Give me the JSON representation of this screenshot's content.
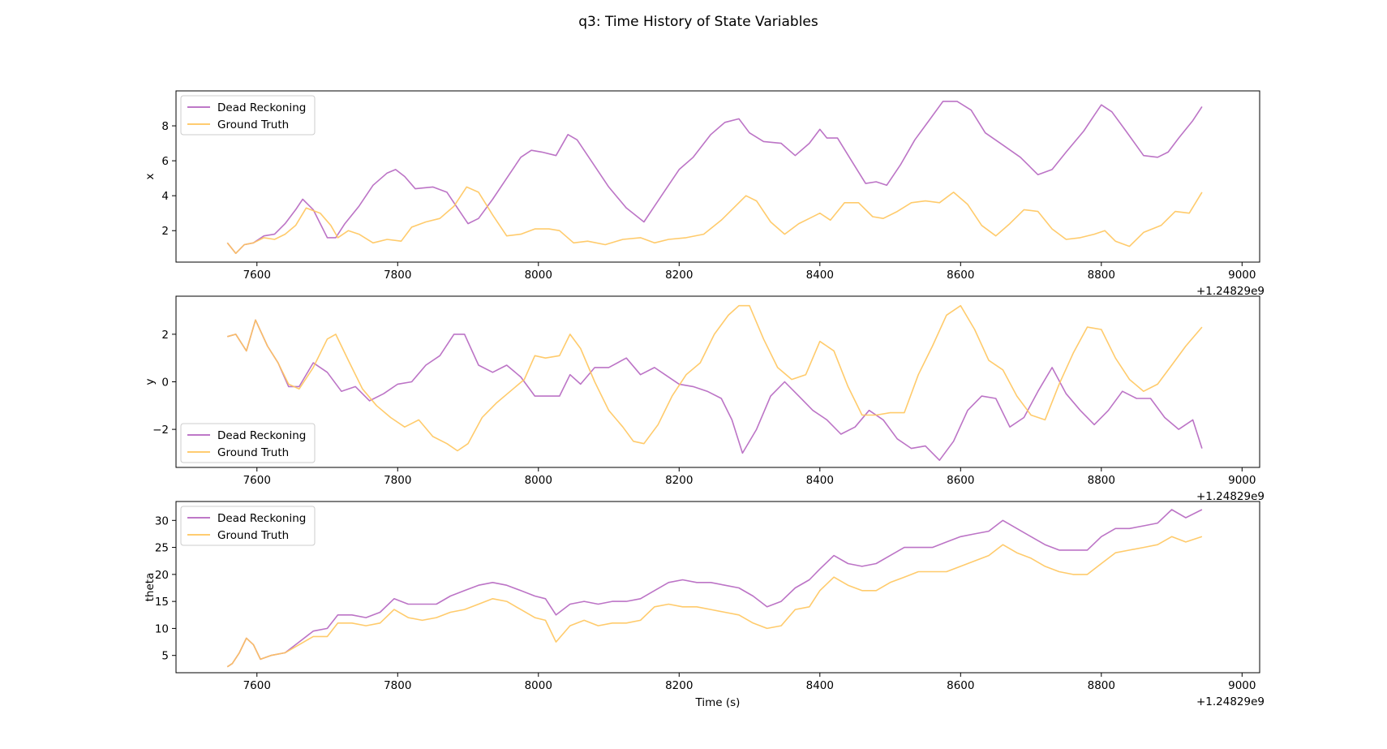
{
  "figure": {
    "title": "q3: Time History of State Variables",
    "xlabel": "Time (s)",
    "x_offset_label": "+1.24829e9"
  },
  "colors": {
    "Dead Reckoning": "#b565c0",
    "Ground Truth": "#ffc55c"
  },
  "chart_data": [
    {
      "type": "line",
      "title": "",
      "xlabel": "",
      "ylabel": "x",
      "x_offset": "+1.24829e9",
      "xlim": [
        7485,
        9025
      ],
      "ylim": [
        0.2,
        10.0
      ],
      "xticks": [
        7600,
        7800,
        8000,
        8200,
        8400,
        8600,
        8800,
        9000
      ],
      "yticks": [
        2,
        4,
        6,
        8
      ],
      "legend": "upper-left",
      "series": [
        {
          "name": "Dead Reckoning",
          "x": [
            7558,
            7570,
            7582,
            7595,
            7610,
            7625,
            7640,
            7655,
            7665,
            7680,
            7700,
            7712,
            7725,
            7745,
            7765,
            7785,
            7797,
            7810,
            7825,
            7850,
            7870,
            7885,
            7900,
            7915,
            7935,
            7955,
            7975,
            7990,
            8005,
            8025,
            8042,
            8055,
            8075,
            8100,
            8125,
            8150,
            8165,
            8180,
            8200,
            8220,
            8245,
            8265,
            8285,
            8300,
            8320,
            8345,
            8365,
            8385,
            8400,
            8410,
            8425,
            8445,
            8465,
            8480,
            8495,
            8515,
            8535,
            8555,
            8575,
            8595,
            8615,
            8635,
            8660,
            8685,
            8710,
            8730,
            8750,
            8775,
            8790,
            8800,
            8815,
            8835,
            8860,
            8880,
            8895,
            8910,
            8930,
            8943
          ],
          "y": [
            1.3,
            0.7,
            1.2,
            1.3,
            1.7,
            1.8,
            2.4,
            3.2,
            3.8,
            3.2,
            1.6,
            1.6,
            2.4,
            3.4,
            4.6,
            5.3,
            5.5,
            5.1,
            4.4,
            4.5,
            4.2,
            3.3,
            2.4,
            2.7,
            3.8,
            5.0,
            6.2,
            6.6,
            6.5,
            6.3,
            7.5,
            7.2,
            6.0,
            4.5,
            3.3,
            2.5,
            3.4,
            4.3,
            5.5,
            6.2,
            7.5,
            8.2,
            8.4,
            7.6,
            7.1,
            7.0,
            6.3,
            7.0,
            7.8,
            7.3,
            7.3,
            6.0,
            4.7,
            4.8,
            4.6,
            5.8,
            7.2,
            8.3,
            9.4,
            9.4,
            8.9,
            7.6,
            6.9,
            6.2,
            5.2,
            5.5,
            6.5,
            7.7,
            8.6,
            9.2,
            8.8,
            7.7,
            6.3,
            6.2,
            6.5,
            7.3,
            8.3,
            9.1
          ]
        },
        {
          "name": "Ground Truth",
          "x": [
            7558,
            7570,
            7582,
            7595,
            7610,
            7625,
            7640,
            7655,
            7670,
            7690,
            7705,
            7715,
            7730,
            7745,
            7765,
            7785,
            7805,
            7820,
            7840,
            7860,
            7880,
            7898,
            7915,
            7935,
            7955,
            7975,
            7995,
            8015,
            8030,
            8050,
            8070,
            8095,
            8120,
            8145,
            8165,
            8185,
            8210,
            8235,
            8260,
            8280,
            8295,
            8310,
            8330,
            8350,
            8370,
            8385,
            8400,
            8415,
            8435,
            8455,
            8475,
            8490,
            8510,
            8530,
            8550,
            8570,
            8590,
            8610,
            8630,
            8650,
            8670,
            8690,
            8710,
            8730,
            8750,
            8770,
            8790,
            8805,
            8820,
            8840,
            8860,
            8885,
            8905,
            8925,
            8943
          ],
          "y": [
            1.3,
            0.7,
            1.2,
            1.3,
            1.6,
            1.5,
            1.8,
            2.3,
            3.3,
            3.0,
            2.3,
            1.6,
            2.0,
            1.8,
            1.3,
            1.5,
            1.4,
            2.2,
            2.5,
            2.7,
            3.4,
            4.5,
            4.2,
            2.9,
            1.7,
            1.8,
            2.1,
            2.1,
            2.0,
            1.3,
            1.4,
            1.2,
            1.5,
            1.6,
            1.3,
            1.5,
            1.6,
            1.8,
            2.6,
            3.4,
            4.0,
            3.7,
            2.5,
            1.8,
            2.4,
            2.7,
            3.0,
            2.6,
            3.6,
            3.6,
            2.8,
            2.7,
            3.1,
            3.6,
            3.7,
            3.6,
            4.2,
            3.5,
            2.3,
            1.7,
            2.4,
            3.2,
            3.1,
            2.1,
            1.5,
            1.6,
            1.8,
            2.0,
            1.4,
            1.1,
            1.9,
            2.3,
            3.1,
            3.0,
            4.2
          ]
        }
      ]
    },
    {
      "type": "line",
      "title": "",
      "xlabel": "",
      "ylabel": "y",
      "x_offset": "+1.24829e9",
      "xlim": [
        7485,
        9025
      ],
      "ylim": [
        -3.6,
        3.6
      ],
      "xticks": [
        7600,
        7800,
        8000,
        8200,
        8400,
        8600,
        8800,
        9000
      ],
      "yticks": [
        -2,
        0,
        2
      ],
      "legend": "lower-left",
      "series": [
        {
          "name": "Dead Reckoning",
          "x": [
            7558,
            7570,
            7585,
            7598,
            7615,
            7630,
            7645,
            7660,
            7680,
            7700,
            7720,
            7740,
            7760,
            7780,
            7800,
            7820,
            7840,
            7860,
            7880,
            7895,
            7915,
            7935,
            7955,
            7975,
            7995,
            8015,
            8030,
            8045,
            8060,
            8080,
            8100,
            8125,
            8145,
            8165,
            8180,
            8200,
            8220,
            8240,
            8260,
            8275,
            8290,
            8310,
            8330,
            8350,
            8370,
            8390,
            8410,
            8430,
            8450,
            8470,
            8490,
            8510,
            8530,
            8550,
            8570,
            8590,
            8610,
            8630,
            8650,
            8670,
            8690,
            8710,
            8730,
            8750,
            8770,
            8790,
            8810,
            8830,
            8850,
            8870,
            8890,
            8910,
            8930,
            8943
          ],
          "y": [
            1.9,
            2.0,
            1.3,
            2.6,
            1.5,
            0.8,
            -0.2,
            -0.2,
            0.8,
            0.4,
            -0.4,
            -0.2,
            -0.8,
            -0.5,
            -0.1,
            0.0,
            0.7,
            1.1,
            2.0,
            2.0,
            0.7,
            0.4,
            0.7,
            0.2,
            -0.6,
            -0.6,
            -0.6,
            0.3,
            -0.1,
            0.6,
            0.6,
            1.0,
            0.3,
            0.6,
            0.3,
            -0.1,
            -0.2,
            -0.4,
            -0.7,
            -1.6,
            -3.0,
            -2.0,
            -0.6,
            0.0,
            -0.6,
            -1.2,
            -1.6,
            -2.2,
            -1.9,
            -1.2,
            -1.6,
            -2.4,
            -2.8,
            -2.7,
            -3.3,
            -2.5,
            -1.2,
            -0.6,
            -0.7,
            -1.9,
            -1.5,
            -0.4,
            0.6,
            -0.5,
            -1.2,
            -1.8,
            -1.2,
            -0.4,
            -0.7,
            -0.7,
            -1.5,
            -2.0,
            -1.6,
            -2.8
          ]
        },
        {
          "name": "Ground Truth",
          "x": [
            7558,
            7570,
            7585,
            7598,
            7615,
            7630,
            7645,
            7660,
            7680,
            7700,
            7712,
            7730,
            7750,
            7770,
            7790,
            7810,
            7830,
            7850,
            7870,
            7885,
            7900,
            7920,
            7940,
            7960,
            7980,
            7995,
            8010,
            8030,
            8045,
            8060,
            8080,
            8100,
            8120,
            8135,
            8150,
            8170,
            8190,
            8210,
            8230,
            8250,
            8270,
            8285,
            8300,
            8320,
            8340,
            8360,
            8380,
            8400,
            8420,
            8440,
            8460,
            8480,
            8500,
            8520,
            8540,
            8560,
            8580,
            8600,
            8620,
            8640,
            8660,
            8680,
            8700,
            8720,
            8740,
            8760,
            8780,
            8800,
            8820,
            8840,
            8860,
            8880,
            8900,
            8920,
            8943
          ],
          "y": [
            1.9,
            2.0,
            1.3,
            2.6,
            1.5,
            0.8,
            -0.1,
            -0.3,
            0.6,
            1.8,
            2.0,
            0.9,
            -0.3,
            -1.0,
            -1.5,
            -1.9,
            -1.6,
            -2.3,
            -2.6,
            -2.9,
            -2.6,
            -1.5,
            -0.9,
            -0.4,
            0.1,
            1.1,
            1.0,
            1.1,
            2.0,
            1.4,
            0.0,
            -1.2,
            -1.9,
            -2.5,
            -2.6,
            -1.8,
            -0.6,
            0.3,
            0.8,
            2.0,
            2.8,
            3.2,
            3.2,
            1.8,
            0.6,
            0.1,
            0.3,
            1.7,
            1.3,
            -0.2,
            -1.4,
            -1.4,
            -1.3,
            -1.3,
            0.3,
            1.5,
            2.8,
            3.2,
            2.2,
            0.9,
            0.5,
            -0.6,
            -1.4,
            -1.6,
            -0.1,
            1.2,
            2.3,
            2.2,
            1.0,
            0.1,
            -0.4,
            -0.1,
            0.7,
            1.5,
            2.3
          ]
        }
      ]
    },
    {
      "type": "line",
      "title": "",
      "xlabel": "Time (s)",
      "ylabel": "theta",
      "x_offset": "+1.24829e9",
      "xlim": [
        7485,
        9025
      ],
      "ylim": [
        1.8,
        33.5
      ],
      "xticks": [
        7600,
        7800,
        8000,
        8200,
        8400,
        8600,
        8800,
        9000
      ],
      "yticks": [
        5,
        10,
        15,
        20,
        25,
        30
      ],
      "legend": "upper-left",
      "series": [
        {
          "name": "Dead Reckoning",
          "x": [
            7558,
            7565,
            7575,
            7585,
            7595,
            7605,
            7620,
            7640,
            7660,
            7680,
            7700,
            7715,
            7735,
            7755,
            7775,
            7795,
            7815,
            7835,
            7855,
            7875,
            7895,
            7915,
            7935,
            7955,
            7975,
            7995,
            8010,
            8025,
            8045,
            8065,
            8085,
            8105,
            8125,
            8145,
            8165,
            8185,
            8205,
            8225,
            8245,
            8265,
            8285,
            8305,
            8325,
            8345,
            8365,
            8385,
            8400,
            8420,
            8440,
            8460,
            8480,
            8500,
            8520,
            8540,
            8560,
            8580,
            8600,
            8620,
            8640,
            8660,
            8680,
            8700,
            8720,
            8740,
            8760,
            8780,
            8800,
            8820,
            8840,
            8860,
            8880,
            8900,
            8920,
            8943
          ],
          "y": [
            2.9,
            3.5,
            5.5,
            8.2,
            7.0,
            4.3,
            5.0,
            5.5,
            7.5,
            9.5,
            10.0,
            12.5,
            12.5,
            12.0,
            13.0,
            15.5,
            14.5,
            14.5,
            14.5,
            16.0,
            17.0,
            18.0,
            18.5,
            18.0,
            17.0,
            16.0,
            15.5,
            12.5,
            14.5,
            15.0,
            14.5,
            15.0,
            15.0,
            15.5,
            17.0,
            18.5,
            19.0,
            18.5,
            18.5,
            18.0,
            17.5,
            16.0,
            14.0,
            15.0,
            17.5,
            19.0,
            21.0,
            23.5,
            22.0,
            21.5,
            22.0,
            23.5,
            25.0,
            25.0,
            25.0,
            26.0,
            27.0,
            27.5,
            28.0,
            30.0,
            28.5,
            27.0,
            25.5,
            24.5,
            24.5,
            24.5,
            27.0,
            28.5,
            28.5,
            29.0,
            29.5,
            32.0,
            30.5,
            32.0
          ]
        },
        {
          "name": "Ground Truth",
          "x": [
            7558,
            7565,
            7575,
            7585,
            7595,
            7605,
            7620,
            7640,
            7660,
            7680,
            7700,
            7715,
            7735,
            7755,
            7775,
            7795,
            7815,
            7835,
            7855,
            7875,
            7895,
            7915,
            7935,
            7955,
            7975,
            7995,
            8010,
            8025,
            8045,
            8065,
            8085,
            8105,
            8125,
            8145,
            8165,
            8185,
            8205,
            8225,
            8245,
            8265,
            8285,
            8305,
            8325,
            8345,
            8365,
            8385,
            8400,
            8420,
            8440,
            8460,
            8480,
            8500,
            8520,
            8540,
            8560,
            8580,
            8600,
            8620,
            8640,
            8660,
            8680,
            8700,
            8720,
            8740,
            8760,
            8780,
            8800,
            8820,
            8840,
            8860,
            8880,
            8900,
            8920,
            8943
          ],
          "y": [
            2.9,
            3.5,
            5.5,
            8.2,
            7.0,
            4.3,
            5.0,
            5.5,
            7.0,
            8.5,
            8.5,
            11.0,
            11.0,
            10.5,
            11.0,
            13.5,
            12.0,
            11.5,
            12.0,
            13.0,
            13.5,
            14.5,
            15.5,
            15.0,
            13.5,
            12.0,
            11.5,
            7.5,
            10.5,
            11.5,
            10.5,
            11.0,
            11.0,
            11.5,
            14.0,
            14.5,
            14.0,
            14.0,
            13.5,
            13.0,
            12.5,
            11.0,
            10.0,
            10.5,
            13.5,
            14.0,
            17.0,
            19.5,
            18.0,
            17.0,
            17.0,
            18.5,
            19.5,
            20.5,
            20.5,
            20.5,
            21.5,
            22.5,
            23.5,
            25.5,
            24.0,
            23.0,
            21.5,
            20.5,
            20.0,
            20.0,
            22.0,
            24.0,
            24.5,
            25.0,
            25.5,
            27.0,
            26.0,
            27.0
          ]
        }
      ]
    }
  ]
}
